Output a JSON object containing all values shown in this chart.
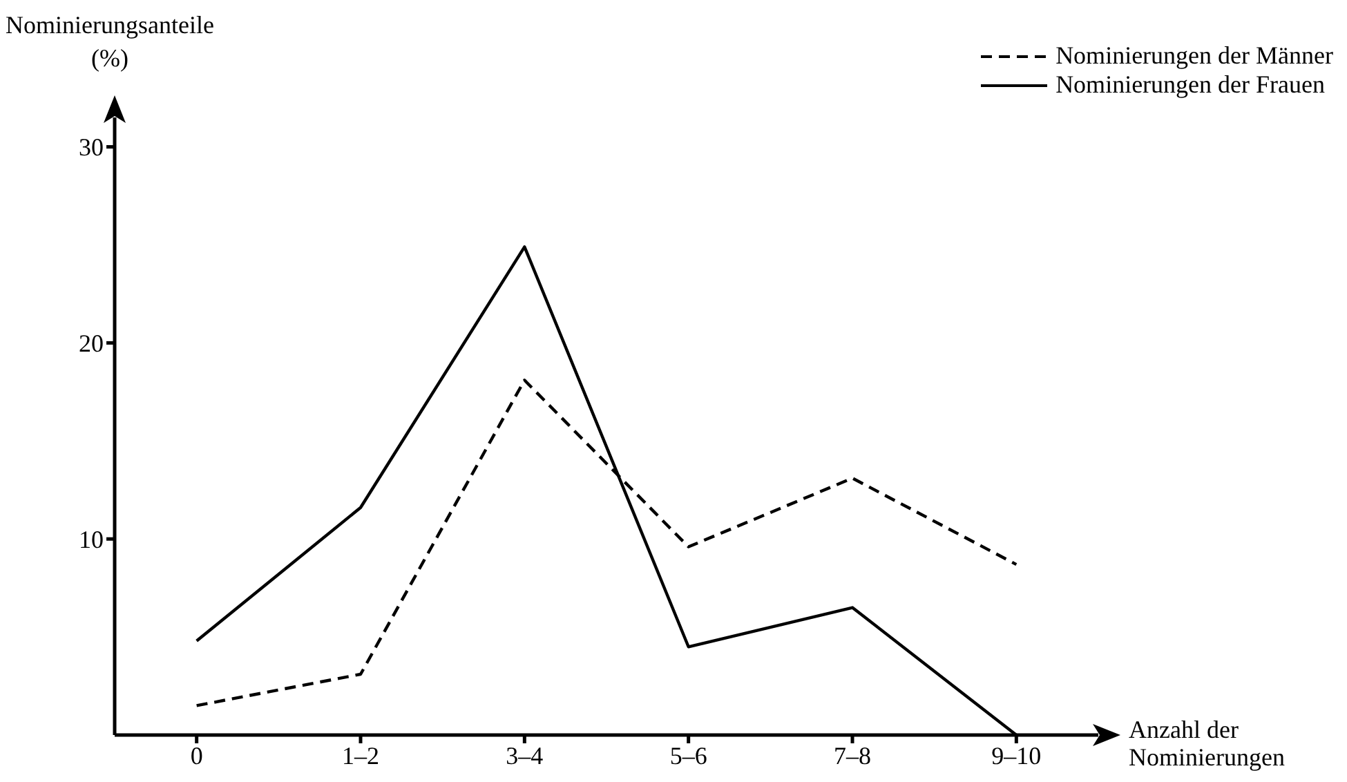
{
  "chart_data": {
    "type": "line",
    "ylabel": "Nominierungsanteile\n(%)",
    "xlabel": "Anzahl der\nNominierungen",
    "categories": [
      "0",
      "1–2",
      "3–4",
      "5–6",
      "7–8",
      "9–10"
    ],
    "series": [
      {
        "name": "Nominierungen der Männer",
        "color": "#000000",
        "line_style": "dashed",
        "values": [
          1.5,
          3.1,
          18.1,
          9.6,
          13.1,
          8.7
        ]
      },
      {
        "name": "Nominierungen der Frauen",
        "color": "#000000",
        "line_style": "solid",
        "values": [
          4.8,
          11.6,
          24.9,
          4.5,
          6.5,
          0
        ]
      }
    ],
    "ylim": [
      0,
      31.5
    ],
    "yticks": [
      10,
      20,
      30
    ],
    "grid": false,
    "legend": "top right",
    "marker": "none"
  }
}
